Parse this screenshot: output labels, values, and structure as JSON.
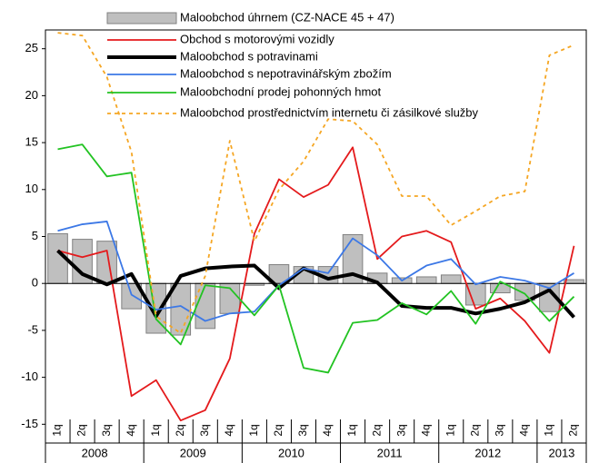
{
  "chart_data": {
    "type": "combo",
    "categories": [
      "1q",
      "2q",
      "3q",
      "4q",
      "1q",
      "2q",
      "3q",
      "4q",
      "1q",
      "2q",
      "3q",
      "4q",
      "1q",
      "2q",
      "3q",
      "4q",
      "1q",
      "2q",
      "3q",
      "4q",
      "1q",
      "2q"
    ],
    "groups": [
      {
        "label": "2008",
        "count": 4
      },
      {
        "label": "2009",
        "count": 4
      },
      {
        "label": "2010",
        "count": 4
      },
      {
        "label": "2011",
        "count": 4
      },
      {
        "label": "2012",
        "count": 4
      },
      {
        "label": "2013",
        "count": 2
      }
    ],
    "ylim": [
      -17,
      27
    ],
    "yticks": [
      -15,
      -10,
      -5,
      0,
      5,
      10,
      15,
      20,
      25
    ],
    "series": [
      {
        "name": "Maloobchod úhrnem (CZ-NACE 45 + 47)",
        "type": "bar",
        "color": "#bfbfbf",
        "values": [
          5.3,
          4.7,
          4.5,
          -2.7,
          -5.3,
          -5.5,
          -4.8,
          -3.2,
          -0.2,
          2.0,
          1.8,
          1.8,
          5.2,
          1.1,
          0.6,
          0.7,
          0.9,
          -2.3,
          -1.0,
          -1.8,
          -3.0,
          0.4
        ]
      },
      {
        "name": "Obchod s motorovými vozidly",
        "type": "line",
        "color": "#e41a1c",
        "values": [
          3.5,
          2.8,
          3.5,
          -12.0,
          -10.3,
          -14.6,
          -13.5,
          -8.0,
          5.3,
          11.1,
          9.2,
          10.5,
          14.5,
          2.6,
          5.0,
          5.6,
          4.4,
          -2.7,
          -1.6,
          -4.0,
          -7.4,
          4.0
        ]
      },
      {
        "name": "Maloobchod s potravinami",
        "type": "line",
        "color": "#000000",
        "width": 4,
        "values": [
          3.5,
          1.0,
          -0.1,
          1.0,
          -3.5,
          0.8,
          1.6,
          1.8,
          1.9,
          -0.5,
          1.6,
          0.5,
          1.0,
          0.1,
          -2.4,
          -2.6,
          -2.6,
          -3.2,
          -2.7,
          -2.0,
          -0.7,
          -3.6
        ]
      },
      {
        "name": "Maloobchod s nepotravinářským zbožím",
        "type": "line",
        "color": "#3c78e6",
        "values": [
          5.6,
          6.3,
          6.6,
          -1.2,
          -2.8,
          -2.4,
          -4.0,
          -3.2,
          -3.0,
          -0.2,
          1.6,
          1.1,
          4.8,
          3.0,
          0.3,
          1.9,
          2.6,
          -0.1,
          0.7,
          0.3,
          -0.5,
          1.1
        ]
      },
      {
        "name": "Maloobchodní prodej pohonných hmot",
        "type": "line",
        "color": "#22c322",
        "values": [
          14.3,
          14.8,
          11.4,
          11.8,
          -3.8,
          -6.5,
          -0.2,
          -0.5,
          -3.4,
          -0.2,
          -9.0,
          -9.5,
          -4.2,
          -3.9,
          -2.1,
          -3.3,
          -0.8,
          -4.3,
          0.2,
          -1.1,
          -4.0,
          -1.4
        ]
      },
      {
        "name": "Maloobchod prostřednictvím internetu či zásilkové služby",
        "type": "line",
        "color": "#f5a623",
        "dash": true,
        "values": [
          26.7,
          26.4,
          22.0,
          14.0,
          -3.5,
          -5.3,
          0.8,
          15.2,
          4.5,
          10.0,
          13.0,
          17.5,
          17.3,
          14.8,
          9.3,
          9.3,
          6.2,
          7.7,
          9.3,
          9.8,
          24.3,
          25.4
        ]
      }
    ]
  }
}
